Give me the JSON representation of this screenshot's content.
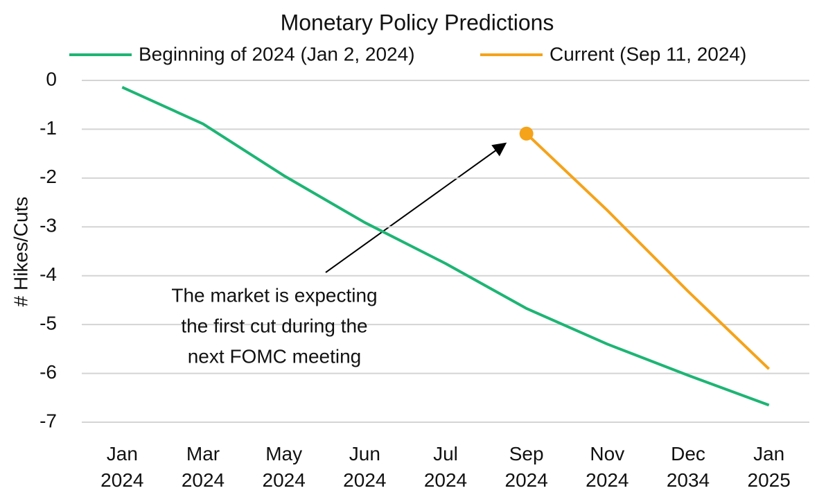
{
  "chart_data": {
    "type": "line",
    "title": "Monetary Policy Predictions",
    "y_label": "# Hikes/Cuts",
    "categories": [
      "Jan 2024",
      "Mar 2024",
      "May 2024",
      "Jun 2024",
      "Jul 2024",
      "Sep 2024",
      "Nov 2024",
      "Dec 2034",
      "Jan 2025"
    ],
    "series": [
      {
        "name": "Beginning of 2024 (Jan 2, 2024)",
        "color": "#1db574",
        "values": [
          -0.14,
          -0.89,
          -1.95,
          -2.91,
          -3.75,
          -4.67,
          -5.4,
          -6.04,
          -6.65
        ]
      },
      {
        "name": "Current (Sep 11, 2024)",
        "color": "#f5a31a",
        "values": [
          null,
          null,
          null,
          null,
          null,
          -1.09,
          -2.66,
          -4.32,
          -5.91
        ]
      }
    ],
    "ylim": [
      -7,
      0
    ],
    "yticks": [
      0,
      -1,
      -2,
      -3,
      -4,
      -5,
      -6,
      -7
    ],
    "grid": true,
    "legend": "top",
    "annotation": [
      "The market is expecting",
      "the first cut during the",
      "next FOMC meeting"
    ]
  }
}
